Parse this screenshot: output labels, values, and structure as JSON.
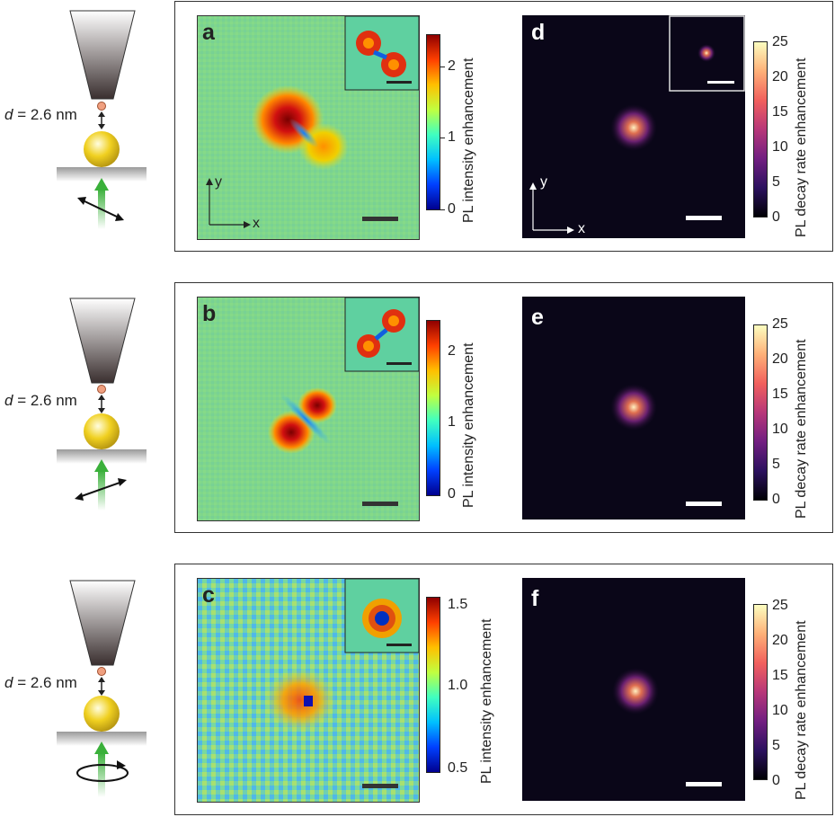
{
  "schematic": {
    "distance_label_var": "d",
    "distance_label_value": " = 2.6 nm"
  },
  "rows": [
    {
      "left": {
        "letter": "a",
        "cbar_label": "PL intensity enhancement",
        "ticks": [
          "2",
          "1",
          "0"
        ],
        "colormap": "jet",
        "pattern": "dipole-diag-down"
      },
      "right": {
        "letter": "d",
        "cbar_label": "PL decay rate enhancement",
        "ticks": [
          "25",
          "20",
          "15",
          "10",
          "5",
          "0"
        ],
        "colormap": "magma"
      },
      "axes": {
        "x": "x",
        "y": "y"
      },
      "polarization": "linear-diag-down"
    },
    {
      "left": {
        "letter": "b",
        "cbar_label": "PL intensity enhancement",
        "ticks": [
          "2",
          "1",
          "0"
        ],
        "colormap": "jet",
        "pattern": "dipole-diag-up"
      },
      "right": {
        "letter": "e",
        "cbar_label": "PL decay rate enhancement",
        "ticks": [
          "25",
          "20",
          "15",
          "10",
          "5",
          "0"
        ],
        "colormap": "magma"
      },
      "polarization": "linear-diag-up"
    },
    {
      "left": {
        "letter": "c",
        "cbar_label": "PL intensity enhancement",
        "ticks": [
          "1.5",
          "1.0",
          "0.5"
        ],
        "colormap": "jet",
        "pattern": "ring"
      },
      "right": {
        "letter": "f",
        "cbar_label": "PL decay rate enhancement",
        "ticks": [
          "25",
          "20",
          "15",
          "10",
          "5",
          "0"
        ],
        "colormap": "magma"
      },
      "polarization": "circular"
    }
  ]
}
